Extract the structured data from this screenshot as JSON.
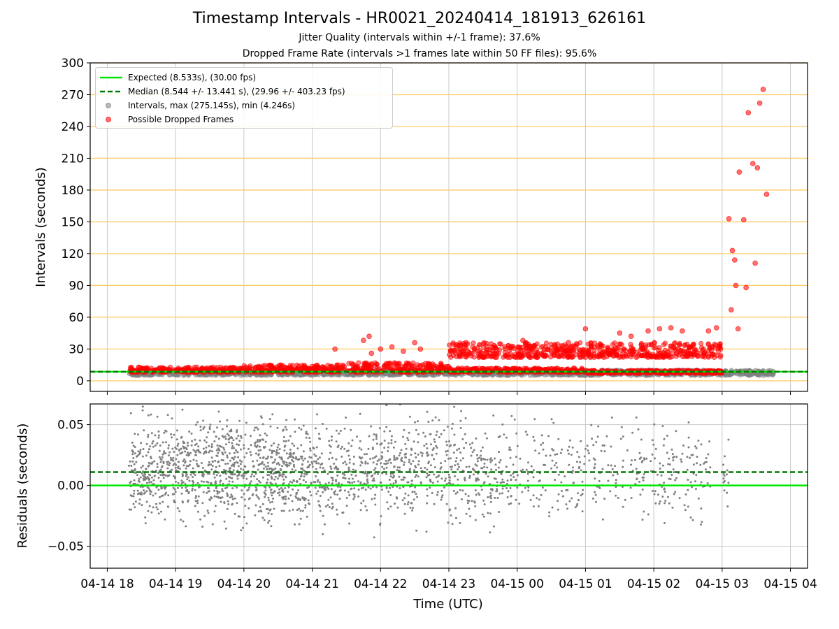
{
  "title": "Timestamp Intervals - HR0021_20240414_181913_626161",
  "subtitle_1": "Jitter Quality (intervals within +/-1 frame): 37.6%",
  "subtitle_2": "Dropped Frame Rate (intervals >1 frames late within 50 FF files): 95.6%",
  "colors": {
    "expected": "#00e600",
    "median": "#007a00",
    "intervals": "#808080",
    "dropped": "#ff0000",
    "hgrid": "#ffcc66",
    "vgrid": "#c8c8c8"
  },
  "chart_data": [
    {
      "type": "scatter",
      "panel": "intervals",
      "ylabel": "Intervals (seconds)",
      "ylim": [
        -10,
        300
      ],
      "yticks": [
        0,
        30,
        60,
        90,
        120,
        150,
        180,
        210,
        240,
        270,
        300
      ],
      "xlim": [
        "2024-04-14 17:45",
        "2024-04-15 04:15"
      ],
      "x_tick_labels": [
        "04-14 18",
        "04-14 19",
        "04-14 20",
        "04-14 21",
        "04-14 22",
        "04-14 23",
        "04-15 00",
        "04-15 01",
        "04-15 02",
        "04-15 03",
        "04-15 04"
      ],
      "grid": "y-orange, x-gray",
      "legend_position": "upper-left",
      "legend": [
        "Expected (8.533s), (30.00 fps)",
        "Median (8.544 +/- 13.441 s), (29.96 +/- 403.23 fps)",
        "Intervals, max (275.145s), min (4.246s)",
        "Possible Dropped Frames"
      ],
      "lines": [
        {
          "name": "Expected (8.533s), (30.00 fps)",
          "y": 8.533,
          "style": "solid"
        },
        {
          "name": "Median (8.544 +/- 13.441 s), (29.96 +/- 403.23 fps)",
          "y": 8.544,
          "style": "dashed"
        }
      ],
      "interval_bands": [
        {
          "start": "2024-04-14 18:19",
          "end": "2024-04-15 03:45",
          "ymin": 5,
          "ymax": 10
        }
      ],
      "dropped_band_segments": [
        {
          "start": "2024-04-14 18:19",
          "end": "2024-04-14 20:00",
          "ymin": 8,
          "ymax": 13
        },
        {
          "start": "2024-04-14 20:00",
          "end": "2024-04-14 21:30",
          "ymin": 8,
          "ymax": 15
        },
        {
          "start": "2024-04-14 21:30",
          "end": "2024-04-14 23:00",
          "ymin": 8,
          "ymax": 17
        },
        {
          "start": "2024-04-14 23:00",
          "end": "2024-04-15 01:00",
          "ymin": 8,
          "ymax": 12
        },
        {
          "start": "2024-04-15 01:00",
          "end": "2024-04-15 03:00",
          "ymin": 7,
          "ymax": 10
        },
        {
          "start": "2024-04-14 23:00",
          "end": "2024-04-15 03:00",
          "ymin": 22,
          "ymax": 36
        }
      ],
      "dropped_points": [
        {
          "x": "2024-04-14 21:20",
          "y": 30
        },
        {
          "x": "2024-04-14 21:45",
          "y": 38
        },
        {
          "x": "2024-04-14 21:50",
          "y": 42
        },
        {
          "x": "2024-04-14 21:52",
          "y": 26
        },
        {
          "x": "2024-04-14 22:00",
          "y": 30
        },
        {
          "x": "2024-04-14 22:10",
          "y": 32
        },
        {
          "x": "2024-04-14 22:20",
          "y": 28
        },
        {
          "x": "2024-04-14 22:30",
          "y": 36
        },
        {
          "x": "2024-04-14 22:35",
          "y": 30
        },
        {
          "x": "2024-04-14 23:15",
          "y": 36
        },
        {
          "x": "2024-04-15 00:05",
          "y": 38
        },
        {
          "x": "2024-04-15 00:45",
          "y": 36
        },
        {
          "x": "2024-04-15 01:00",
          "y": 49
        },
        {
          "x": "2024-04-15 01:30",
          "y": 45
        },
        {
          "x": "2024-04-15 01:40",
          "y": 42
        },
        {
          "x": "2024-04-15 01:55",
          "y": 47
        },
        {
          "x": "2024-04-15 02:05",
          "y": 49
        },
        {
          "x": "2024-04-15 02:15",
          "y": 50
        },
        {
          "x": "2024-04-15 02:25",
          "y": 47
        },
        {
          "x": "2024-04-15 02:48",
          "y": 47
        },
        {
          "x": "2024-04-15 02:55",
          "y": 50
        },
        {
          "x": "2024-04-15 03:06",
          "y": 153
        },
        {
          "x": "2024-04-15 03:08",
          "y": 67
        },
        {
          "x": "2024-04-15 03:09",
          "y": 123
        },
        {
          "x": "2024-04-15 03:11",
          "y": 114
        },
        {
          "x": "2024-04-15 03:12",
          "y": 90
        },
        {
          "x": "2024-04-15 03:14",
          "y": 49
        },
        {
          "x": "2024-04-15 03:15",
          "y": 197
        },
        {
          "x": "2024-04-15 03:19",
          "y": 152
        },
        {
          "x": "2024-04-15 03:21",
          "y": 88
        },
        {
          "x": "2024-04-15 03:23",
          "y": 253
        },
        {
          "x": "2024-04-15 03:27",
          "y": 205
        },
        {
          "x": "2024-04-15 03:29",
          "y": 111
        },
        {
          "x": "2024-04-15 03:31",
          "y": 201
        },
        {
          "x": "2024-04-15 03:33",
          "y": 262
        },
        {
          "x": "2024-04-15 03:36",
          "y": 275
        },
        {
          "x": "2024-04-15 03:39",
          "y": 176
        }
      ]
    },
    {
      "type": "scatter",
      "panel": "residuals",
      "ylabel": "Residuals (seconds)",
      "xlabel": "Time (UTC)",
      "ylim": [
        -0.068,
        0.067
      ],
      "yticks": [
        -0.05,
        0.0,
        0.05
      ],
      "ytick_labels": [
        "−0.05",
        "0.00",
        "0.05"
      ],
      "xlim": [
        "2024-04-14 17:45",
        "2024-04-15 04:15"
      ],
      "x_tick_labels": [
        "04-14 18",
        "04-14 19",
        "04-14 20",
        "04-14 21",
        "04-14 22",
        "04-14 23",
        "04-15 00",
        "04-15 01",
        "04-15 02",
        "04-15 03",
        "04-15 04"
      ],
      "grid": "gray",
      "lines": [
        {
          "name": "Expected",
          "y": 0.0,
          "style": "solid"
        },
        {
          "name": "Median",
          "y": 0.011,
          "style": "dashed"
        }
      ],
      "residual_density": [
        {
          "start": "2024-04-14 18:19",
          "end": "2024-04-14 21:00",
          "ymin": -0.064,
          "ymax": 0.064
        },
        {
          "start": "2024-04-14 21:00",
          "end": "2024-04-15 00:00",
          "ymin": -0.066,
          "ymax": 0.065
        },
        {
          "start": "2024-04-15 00:00",
          "end": "2024-04-15 02:50",
          "ymin": -0.06,
          "ymax": 0.063
        },
        {
          "start": "2024-04-15 03:00",
          "end": "2024-04-15 03:06",
          "ymin": -0.04,
          "ymax": 0.053
        }
      ]
    }
  ]
}
